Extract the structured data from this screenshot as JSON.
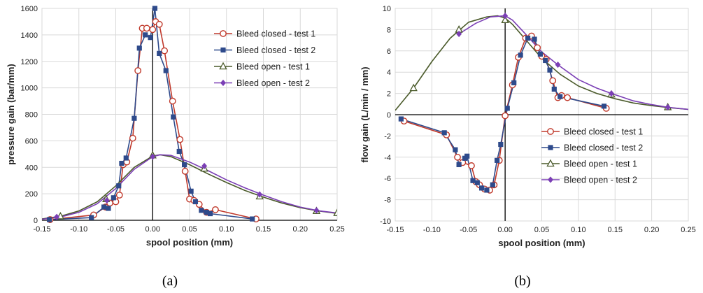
{
  "charts": [
    {
      "id": "a",
      "caption": "(a)",
      "xlabel": "spool position (mm)",
      "ylabel": "pressure gain  (bar/mm)",
      "xlim": [
        -0.15,
        0.25
      ],
      "ylim": [
        0,
        1600
      ],
      "xticks": [
        "-0.15",
        "-0.10",
        "-0.05",
        "0.00",
        "0.05",
        "0.10",
        "0.15",
        "0.20",
        "0.25"
      ],
      "yticks": [
        "0",
        "200",
        "400",
        "600",
        "800",
        "1000",
        "1200",
        "1400",
        "1600"
      ]
    },
    {
      "id": "b",
      "caption": "(b)",
      "xlabel": "spool position (mm)",
      "ylabel": "flow gain  (L/min / mm)",
      "xlim": [
        -0.15,
        0.25
      ],
      "ylim": [
        -10,
        10
      ],
      "xticks": [
        "-0.15",
        "-0.10",
        "-0.05",
        "0.00",
        "0.05",
        "0.10",
        "0.15",
        "0.20",
        "0.25"
      ],
      "yticks": [
        "-10",
        "-8",
        "-6",
        "-4",
        "-2",
        "0",
        "2",
        "4",
        "6",
        "8",
        "10"
      ]
    }
  ],
  "legend": [
    {
      "name": "Bleed closed - test 1",
      "color": "#c0392b",
      "marker": "open-circle"
    },
    {
      "name": "Bleed closed - test 2",
      "color": "#2e4a8b",
      "marker": "filled-square"
    },
    {
      "name": "Bleed open - test 1",
      "color": "#4a5a2a",
      "marker": "open-triangle"
    },
    {
      "name": "Bleed open - test 2",
      "color": "#7b3fb5",
      "marker": "filled-diamond"
    }
  ],
  "chart_data": [
    {
      "type": "line",
      "title": "",
      "xlabel": "spool position (mm)",
      "ylabel": "pressure gain  (bar/mm)",
      "xlim": [
        -0.15,
        0.25
      ],
      "ylim": [
        0,
        1600
      ],
      "grid": true,
      "legend_position": "right",
      "series": [
        {
          "name": "Bleed closed - test 1",
          "color": "#c0392b",
          "marker": "open-circle",
          "x": [
            -0.139,
            -0.08,
            -0.064,
            -0.058,
            -0.05,
            -0.045,
            -0.04,
            -0.035,
            -0.027,
            -0.02,
            -0.014,
            -0.008,
            0.0,
            0.004,
            0.009,
            0.016,
            0.027,
            0.037,
            0.044,
            0.05,
            0.056,
            0.063,
            0.073,
            0.085,
            0.14
          ],
          "y": [
            5,
            40,
            100,
            130,
            140,
            190,
            420,
            440,
            620,
            1130,
            1450,
            1450,
            1440,
            1500,
            1480,
            1280,
            900,
            610,
            370,
            160,
            150,
            120,
            60,
            80,
            10
          ]
        },
        {
          "name": "Bleed closed - test 2",
          "color": "#2e4a8b",
          "marker": "filled-square",
          "x": [
            -0.14,
            -0.083,
            -0.066,
            -0.06,
            -0.053,
            -0.046,
            -0.042,
            -0.036,
            -0.025,
            -0.018,
            -0.01,
            -0.003,
            0.003,
            0.009,
            0.018,
            0.028,
            0.036,
            0.043,
            0.052,
            0.058,
            0.066,
            0.073,
            0.078,
            0.135
          ],
          "y": [
            5,
            20,
            100,
            90,
            170,
            260,
            430,
            470,
            770,
            1300,
            1400,
            1380,
            1600,
            1260,
            1130,
            780,
            520,
            420,
            220,
            140,
            75,
            60,
            50,
            10
          ]
        },
        {
          "name": "Bleed open - test 1",
          "color": "#4a5a2a",
          "marker": "open-triangle",
          "x": [
            -0.125,
            -0.063,
            0.0,
            0.07,
            0.145,
            0.222,
            0.25
          ],
          "y": [
            30,
            160,
            490,
            390,
            180,
            70,
            55
          ],
          "curve_x": [
            -0.15,
            -0.125,
            -0.1,
            -0.075,
            -0.05,
            -0.025,
            0.0,
            0.01,
            0.025,
            0.05,
            0.075,
            0.1,
            0.125,
            0.15,
            0.175,
            0.2,
            0.225,
            0.25
          ],
          "curve_y": [
            10,
            30,
            70,
            140,
            260,
            400,
            485,
            495,
            480,
            420,
            350,
            285,
            225,
            175,
            130,
            95,
            70,
            52
          ]
        },
        {
          "name": "Bleed open - test 2",
          "color": "#7b3fb5",
          "marker": "filled-diamond",
          "x": [
            -0.13,
            -0.062,
            0.0,
            0.07,
            0.145,
            0.222
          ],
          "y": [
            25,
            150,
            480,
            410,
            195,
            75
          ],
          "curve_x": [
            -0.15,
            -0.125,
            -0.1,
            -0.075,
            -0.05,
            -0.025,
            0.0,
            0.01,
            0.025,
            0.05,
            0.075,
            0.1,
            0.125,
            0.15,
            0.175,
            0.2,
            0.225,
            0.25
          ],
          "curve_y": [
            8,
            25,
            60,
            125,
            240,
            385,
            480,
            495,
            490,
            440,
            375,
            305,
            245,
            190,
            140,
            100,
            72,
            55
          ]
        }
      ]
    },
    {
      "type": "line",
      "title": "",
      "xlabel": "spool position (mm)",
      "ylabel": "flow gain  (L/min / mm)",
      "xlim": [
        -0.15,
        0.25
      ],
      "ylim": [
        -10,
        10
      ],
      "grid": true,
      "legend_position": "bottom-right",
      "series": [
        {
          "name": "Bleed closed - test 1",
          "color": "#c0392b",
          "marker": "open-circle",
          "x": [
            -0.138,
            -0.08,
            -0.065,
            -0.058,
            -0.046,
            -0.04,
            -0.035,
            -0.028,
            -0.021,
            -0.015,
            -0.008,
            0.0,
            0.01,
            0.018,
            0.028,
            0.036,
            0.044,
            0.05,
            0.056,
            0.065,
            0.072,
            0.077,
            0.085,
            0.138
          ],
          "y": [
            -0.6,
            -1.9,
            -4.0,
            -4.5,
            -4.8,
            -6.3,
            -6.6,
            -7.0,
            -7.1,
            -6.6,
            -4.3,
            -0.1,
            2.8,
            5.4,
            7.2,
            7.4,
            6.3,
            5.5,
            5.2,
            3.2,
            1.6,
            1.8,
            1.6,
            0.6
          ]
        },
        {
          "name": "Bleed closed - test 2",
          "color": "#2e4a8b",
          "marker": "filled-square",
          "x": [
            -0.142,
            -0.083,
            -0.068,
            -0.063,
            -0.055,
            -0.052,
            -0.044,
            -0.038,
            -0.032,
            -0.025,
            -0.017,
            -0.011,
            -0.006,
            0.003,
            0.012,
            0.021,
            0.031,
            0.04,
            0.048,
            0.055,
            0.061,
            0.067,
            0.075,
            0.135
          ],
          "y": [
            -0.4,
            -1.7,
            -3.3,
            -4.7,
            -4.1,
            -3.9,
            -6.2,
            -6.4,
            -6.9,
            -7.1,
            -6.6,
            -4.3,
            -2.8,
            0.6,
            3.0,
            5.6,
            7.2,
            7.1,
            5.7,
            5.1,
            4.2,
            2.4,
            1.7,
            0.8
          ]
        },
        {
          "name": "Bleed open - test 1",
          "color": "#4a5a2a",
          "marker": "open-triangle",
          "x": [
            -0.125,
            -0.063,
            0.0,
            0.145,
            0.222
          ],
          "y": [
            2.5,
            8.0,
            8.9,
            1.9,
            0.7
          ],
          "curve_x": [
            -0.15,
            -0.125,
            -0.1,
            -0.075,
            -0.05,
            -0.025,
            -0.01,
            0.0,
            0.01,
            0.025,
            0.05,
            0.075,
            0.1,
            0.125,
            0.15,
            0.175,
            0.2,
            0.225,
            0.25
          ],
          "curve_y": [
            0.4,
            2.5,
            5.0,
            7.2,
            8.7,
            9.2,
            9.3,
            9.1,
            8.5,
            7.3,
            5.3,
            3.8,
            2.7,
            2.0,
            1.5,
            1.1,
            0.85,
            0.65,
            0.5
          ]
        },
        {
          "name": "Bleed open - test 2",
          "color": "#7b3fb5",
          "marker": "filled-diamond",
          "x": [
            -0.063,
            0.0,
            0.072,
            0.145,
            0.222
          ],
          "y": [
            7.6,
            9.3,
            4.7,
            2.0,
            0.7
          ],
          "curve_x": [
            -0.063,
            -0.04,
            -0.02,
            0.0,
            0.01,
            0.025,
            0.05,
            0.072,
            0.1,
            0.125,
            0.145,
            0.175,
            0.2,
            0.222,
            0.25
          ],
          "curve_y": [
            7.6,
            8.6,
            9.2,
            9.3,
            8.9,
            7.8,
            5.9,
            4.7,
            3.3,
            2.5,
            2.0,
            1.3,
            0.95,
            0.7,
            0.5
          ]
        }
      ]
    }
  ]
}
